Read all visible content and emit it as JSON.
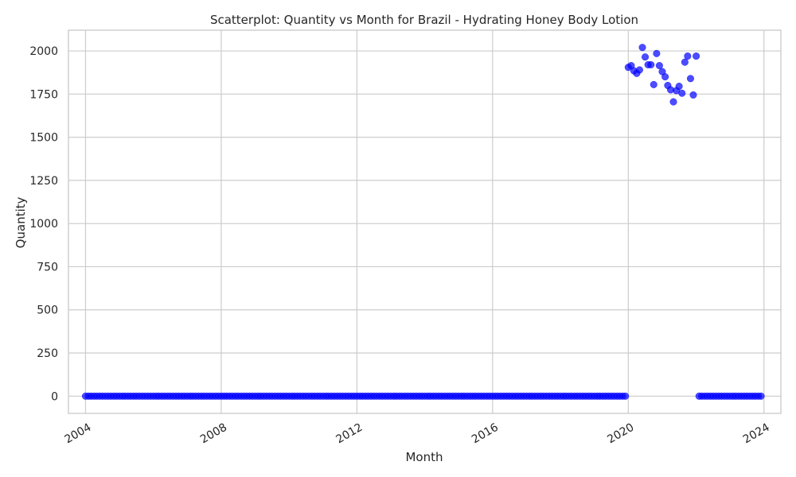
{
  "chart_data": {
    "type": "scatter",
    "title": "Scatterplot: Quantity vs Month for Brazil - Hydrating Honey Body Lotion",
    "xlabel": "Month",
    "ylabel": "Quantity",
    "x_is_date": true,
    "xlim": [
      "2003-07-01",
      "2024-07-01"
    ],
    "ylim": [
      -100,
      2120
    ],
    "x_ticks": [
      "2004",
      "2008",
      "2012",
      "2016",
      "2020",
      "2024"
    ],
    "y_ticks": [
      "0",
      "250",
      "500",
      "750",
      "1000",
      "1250",
      "1500",
      "1750",
      "2000"
    ],
    "y_tick_values": [
      0,
      250,
      500,
      750,
      1000,
      1250,
      1500,
      1750,
      2000
    ],
    "grid": true,
    "marker_color": "#0000ff",
    "series": [
      {
        "zero_range": [
          "2004-01",
          "2019-12"
        ],
        "points": [
          [
            "2020-01",
            1905
          ],
          [
            "2020-02",
            1915
          ],
          [
            "2020-03",
            1885
          ],
          [
            "2020-04",
            1870
          ],
          [
            "2020-05",
            1890
          ],
          [
            "2020-06",
            2020
          ],
          [
            "2020-07",
            1965
          ],
          [
            "2020-08",
            1920
          ],
          [
            "2020-09",
            1920
          ],
          [
            "2020-10",
            1805
          ],
          [
            "2020-11",
            1985
          ],
          [
            "2020-12",
            1915
          ],
          [
            "2021-01",
            1880
          ],
          [
            "2021-02",
            1850
          ],
          [
            "2021-03",
            1800
          ],
          [
            "2021-04",
            1775
          ],
          [
            "2021-05",
            1705
          ],
          [
            "2021-06",
            1770
          ],
          [
            "2021-07",
            1795
          ],
          [
            "2021-08",
            1755
          ],
          [
            "2021-09",
            1935
          ],
          [
            "2021-10",
            1970
          ],
          [
            "2021-11",
            1840
          ],
          [
            "2021-12",
            1745
          ],
          [
            "2022-01",
            1970
          ]
        ],
        "zero_range_2": [
          "2022-02",
          "2023-12"
        ]
      }
    ]
  }
}
